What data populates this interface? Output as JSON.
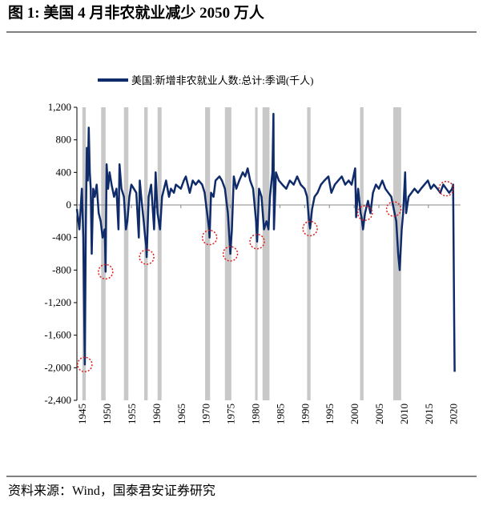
{
  "chart_data": {
    "type": "line",
    "title": "图 1:  美国 4 月非农就业减少 2050 万人",
    "source": "资料来源：Wind，国泰君安证券研究",
    "xlim": [
      1944,
      2021.5
    ],
    "ylim": [
      -2400,
      1200
    ],
    "xticks": [
      1945,
      1950,
      1955,
      1960,
      1965,
      1970,
      1975,
      1980,
      1985,
      1990,
      1995,
      2000,
      2005,
      2010,
      2015,
      2020
    ],
    "yticks": [
      {
        "value": -2400,
        "label": "-2,400"
      },
      {
        "value": -2000,
        "label": "-2,000"
      },
      {
        "value": -1600,
        "label": "-1,600"
      },
      {
        "value": -1200,
        "label": "-1,200"
      },
      -800,
      -400,
      0,
      400,
      800,
      {
        "value": 1200,
        "label": "1,200"
      }
    ],
    "recessions": [
      [
        1945.1,
        1945.8
      ],
      [
        1948.9,
        1949.8
      ],
      [
        1953.5,
        1954.4
      ],
      [
        1957.6,
        1958.3
      ],
      [
        1960.3,
        1961.1
      ],
      [
        1969.9,
        1970.9
      ],
      [
        1973.9,
        1975.2
      ],
      [
        1980.0,
        1980.5
      ],
      [
        1981.5,
        1982.9
      ],
      [
        1990.5,
        1991.2
      ],
      [
        2001.2,
        2001.9
      ],
      [
        2007.9,
        2009.5
      ]
    ],
    "recession_color": "#c8c8c8",
    "circled": [
      4,
      20,
      43,
      72,
      77,
      88,
      111,
      137,
      148,
      167
    ],
    "circle_color": "#e02020",
    "series": [
      {
        "name": "美国:新增非农就业人数:总计:季调(千人)",
        "color": "#0f2b69",
        "x": [
          1944.0,
          1944.5,
          1945.0,
          1945.3,
          1945.6,
          1945.8,
          1946.0,
          1946.2,
          1946.4,
          1946.6,
          1946.8,
          1947.0,
          1947.3,
          1947.6,
          1948.0,
          1948.4,
          1948.8,
          1949.2,
          1949.6,
          1949.7,
          1949.8,
          1950.0,
          1950.3,
          1950.6,
          1951.0,
          1951.5,
          1952.0,
          1952.4,
          1952.6,
          1953.0,
          1953.5,
          1953.9,
          1954.2,
          1954.6,
          1955.0,
          1955.5,
          1956.0,
          1956.5,
          1956.7,
          1957.0,
          1957.5,
          1957.8,
          1958.0,
          1958.1,
          1958.5,
          1959.0,
          1959.6,
          1959.9,
          1960.3,
          1960.8,
          1961.2,
          1961.6,
          1962.0,
          1962.6,
          1963.0,
          1963.6,
          1964.0,
          1965.0,
          1965.6,
          1966.0,
          1966.8,
          1967.4,
          1968.0,
          1968.6,
          1969.3,
          1969.8,
          1970.0,
          1970.3,
          1970.5,
          1970.6,
          1970.7,
          1970.75,
          1970.8,
          1971.1,
          1971.6,
          1972.0,
          1972.8,
          1975.0,
          1973.3,
          1973.9,
          1974.5,
          1975.3,
          1975.7,
          1976.2,
          1976.8,
          1977.5,
          1978.0,
          1978.5,
          1980.4,
          1979.0,
          1979.6,
          1980.2,
          1980.8,
          1981.3,
          1981.8,
          1982.3,
          1982.7,
          1983.0,
          1983.5,
          1983.7,
          1983.8,
          1984.2,
          1984.8,
          1985.5,
          1986.3,
          1987.0,
          1987.8,
          1988.5,
          1989.2,
          1990.0,
          1990.5,
          1991.1,
          1990.9,
          1991.5,
          1992.0,
          1992.6,
          1993.3,
          1994.0,
          1994.8,
          1995.4,
          1996.1,
          1996.8,
          1997.5,
          1998.2,
          1998.9,
          1999.5,
          2000.2,
          2000.4,
          2000.8,
          2001.3,
          2001.5,
          2001.6,
          2001.7,
          2001.75,
          2001.78,
          2001.79,
          2001.8,
          2002.2,
          2002.8,
          2003.3,
          2003.8,
          2004.4,
          2005.0,
          2005.7,
          2006.3,
          2006.9,
          2007.5,
          2009.2,
          2008.0,
          2008.5,
          2008.9,
          2009.6,
          2009.9,
          2010.3,
          2010.5,
          2011.0,
          2011.6,
          2012.2,
          2012.9,
          2013.5,
          2014.2,
          2014.9,
          2015.5,
          2016.1,
          2016.8,
          2017.4,
          2018.0,
          2018.6,
          2019.2,
          2020.3,
          2019.8,
          2020.0,
          2020.2
        ],
        "values": [
          -50,
          -300,
          200,
          -400,
          -1960,
          -300,
          700,
          300,
          950,
          400,
          200,
          -600,
          200,
          100,
          250,
          -100,
          -200,
          -400,
          -300,
          -500,
          -820,
          500,
          200,
          400,
          250,
          100,
          200,
          -300,
          500,
          200,
          100,
          -300,
          -200,
          100,
          250,
          200,
          150,
          -400,
          300,
          100,
          -200,
          -400,
          -500,
          -640,
          100,
          250,
          -300,
          400,
          -100,
          -300,
          100,
          200,
          300,
          100,
          200,
          150,
          250,
          200,
          300,
          350,
          150,
          300,
          250,
          300,
          250,
          150,
          50,
          -100,
          -200,
          -250,
          -300,
          -350,
          -400,
          150,
          100,
          300,
          350,
          -600,
          300,
          200,
          -100,
          -300,
          350,
          200,
          300,
          400,
          350,
          450,
          -450,
          300,
          200,
          -200,
          200,
          100,
          -300,
          -200,
          -300,
          100,
          400,
          1120,
          -300,
          400,
          300,
          250,
          200,
          300,
          250,
          350,
          250,
          200,
          100,
          -290,
          -200,
          -50,
          100,
          150,
          250,
          300,
          350,
          150,
          250,
          300,
          350,
          250,
          300,
          250,
          450,
          -150,
          200,
          -100,
          -150,
          -200,
          -250,
          -270,
          -280,
          -290,
          -300,
          -100,
          50,
          -100,
          150,
          250,
          200,
          300,
          200,
          150,
          100,
          -800,
          -50,
          -200,
          -600,
          -300,
          -100,
          400,
          -100,
          100,
          150,
          200,
          150,
          200,
          250,
          300,
          200,
          250,
          200,
          150,
          250,
          200,
          150,
          -2050,
          200,
          250,
          -1400
        ]
      }
    ]
  }
}
